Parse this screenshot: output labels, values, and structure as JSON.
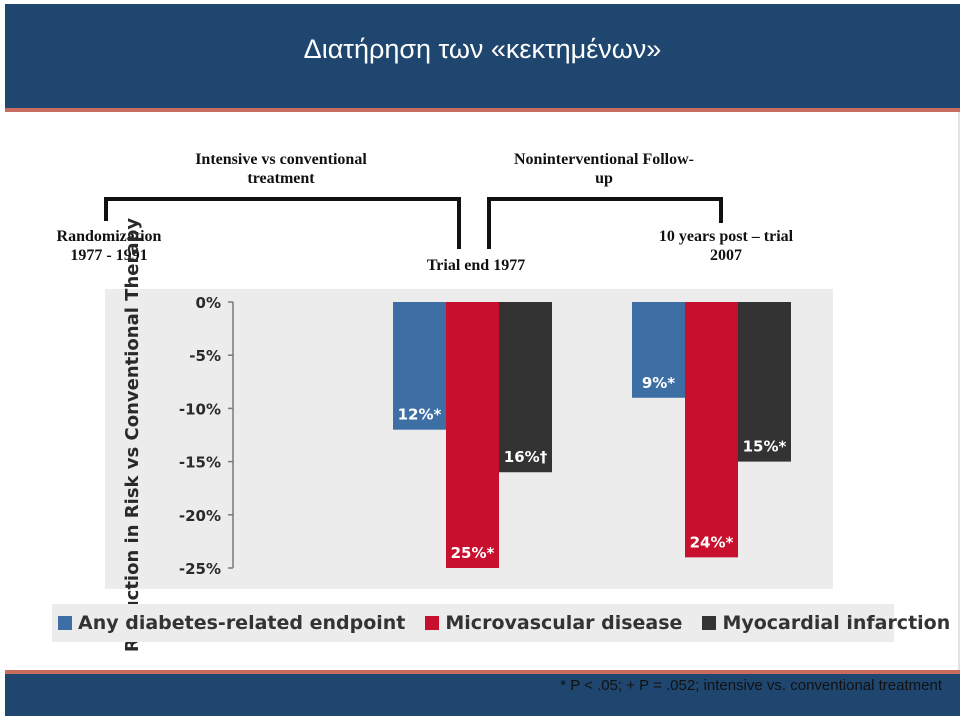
{
  "header": {
    "title": "Διατήρηση των «κεκτημένων»",
    "background": "#1f466e",
    "rule_color": "#c96b5e"
  },
  "timeline": {
    "phase1_label": "Intensive vs conventional treatment",
    "phase2_label": "Noninterventional Follow-up",
    "randomization_label": "Randomization 1977 - 1991",
    "trial_end_label": "Trial end 1977",
    "post_trial_label": "10 years post – trial 2007"
  },
  "chart_data": {
    "type": "bar",
    "title": "",
    "ylabel": "Reduction in Risk vs Conventional Therapy",
    "xlabel": "",
    "yticks": [
      "0%",
      "-5%",
      "-10%",
      "-15%",
      "-20%",
      "-25%"
    ],
    "ylim": [
      -25,
      0
    ],
    "groups": [
      "Trial end 1977",
      "10 years post – trial 2007"
    ],
    "series": [
      {
        "name": "Any diabetes-related endpoint",
        "color": "#3d6fa5",
        "values": [
          -12,
          -9
        ],
        "labels": [
          "12%*",
          "9%*"
        ]
      },
      {
        "name": "Microvascular disease",
        "color": "#c8102e",
        "values": [
          -25,
          -24
        ],
        "labels": [
          "25%*",
          "24%*"
        ]
      },
      {
        "name": "Myocardial infarction",
        "color": "#333333",
        "values": [
          -16,
          -15
        ],
        "labels": [
          "16%†",
          "15%*"
        ]
      }
    ],
    "legend_position": "bottom",
    "grid": false
  },
  "footnote": "* P < .05; + P = .052; intensive vs. conventional treatment"
}
